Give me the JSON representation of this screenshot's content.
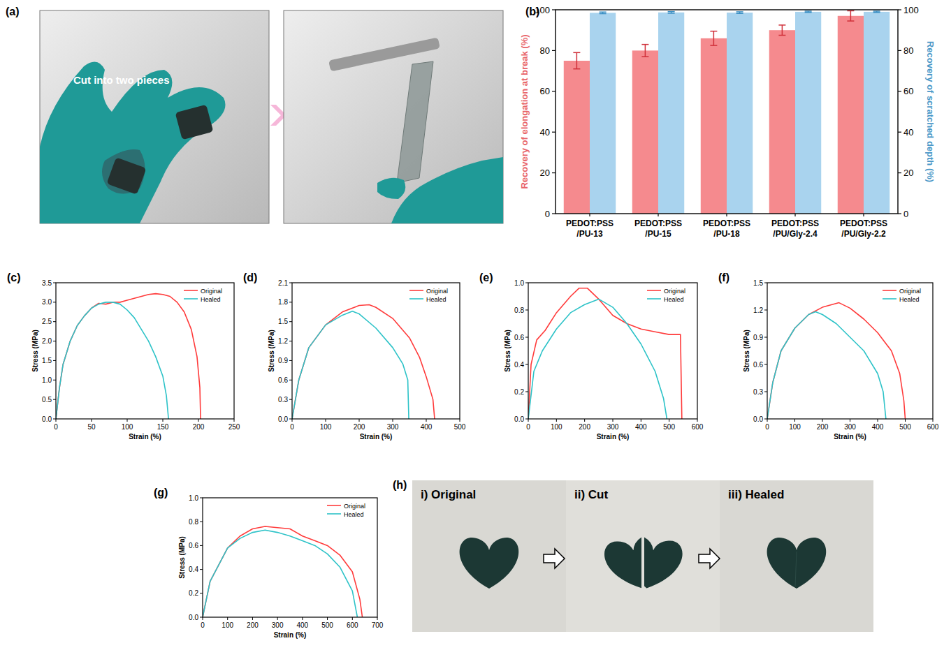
{
  "chart_data": [
    {
      "type": "bar",
      "panel": "(b)",
      "categories": [
        "PEDOT:PSS\n/PU-13",
        "PEDOT:PSS\n/PU-15",
        "PEDOT:PSS\n/PU-18",
        "PEDOT:PSS\n/PU/Gly-2.4",
        "PEDOT:PSS\n/PU/Gly-2.2"
      ],
      "y_label": "Recovery of elongation at break (%)",
      "y2_label": "Recovery of scratched depth (%)",
      "ylim": [
        0,
        100
      ],
      "yticks": [
        0,
        20,
        40,
        60,
        80,
        100
      ],
      "y2lim": [
        0,
        100
      ],
      "y2ticks": [
        0,
        20,
        40,
        60,
        80,
        100
      ],
      "grid": false,
      "series": [
        {
          "color": "#f58a8e",
          "values": [
            75,
            80,
            86,
            90,
            97
          ],
          "errors": [
            4,
            3,
            3.5,
            2.5,
            2.5
          ]
        },
        {
          "color": "#a9d3ee",
          "axis": "y2",
          "values": [
            98.5,
            98.7,
            98.6,
            99,
            99
          ],
          "errors": [
            0.4,
            0.4,
            0.4,
            0.3,
            0.3
          ]
        }
      ]
    },
    {
      "type": "line",
      "panel": "(c)",
      "x_label": "Strain (%)",
      "y_label": "Stress (MPa)",
      "xlim": [
        0,
        250
      ],
      "xticks": [
        0,
        50,
        100,
        150,
        200,
        250
      ],
      "ylim": [
        0,
        3.5
      ],
      "yticks": [
        {
          "value": 0,
          "label": "0.0"
        },
        0.5,
        {
          "value": 1,
          "label": "1.0"
        },
        1.5,
        {
          "value": 2,
          "label": "2.0"
        },
        2.5,
        {
          "value": 3,
          "label": "3.0"
        },
        3.5
      ],
      "legend": "upper right",
      "grid": false,
      "series": [
        {
          "name": "Original",
          "color": "#ff3b3b",
          "x": [
            0,
            5,
            10,
            20,
            30,
            40,
            50,
            60,
            70,
            80,
            90,
            100,
            110,
            120,
            130,
            140,
            150,
            160,
            170,
            180,
            190,
            198,
            202,
            203
          ],
          "values": [
            0,
            0.8,
            1.4,
            2.0,
            2.4,
            2.65,
            2.85,
            2.97,
            2.95,
            3.0,
            3.0,
            3.05,
            3.1,
            3.15,
            3.2,
            3.22,
            3.2,
            3.15,
            3.0,
            2.75,
            2.3,
            1.6,
            0.8,
            0
          ]
        },
        {
          "name": "Healed",
          "color": "#2ec3c8",
          "x": [
            0,
            5,
            10,
            20,
            30,
            40,
            50,
            60,
            70,
            80,
            90,
            100,
            110,
            120,
            130,
            140,
            150,
            155,
            158
          ],
          "values": [
            0,
            0.8,
            1.4,
            2.0,
            2.4,
            2.65,
            2.85,
            2.95,
            3.0,
            3.0,
            2.95,
            2.8,
            2.6,
            2.3,
            2.0,
            1.6,
            1.1,
            0.6,
            0
          ]
        }
      ]
    },
    {
      "type": "line",
      "panel": "(d)",
      "x_label": "Strain (%)",
      "y_label": "Stress (MPa)",
      "xlim": [
        0,
        500
      ],
      "xticks": [
        0,
        100,
        200,
        300,
        400,
        500
      ],
      "ylim": [
        0,
        2.1
      ],
      "yticks": [
        {
          "value": 0,
          "label": "0.0"
        },
        0.3,
        0.6,
        0.9,
        1.2,
        1.5,
        1.8,
        2.1
      ],
      "legend": "upper right",
      "grid": false,
      "series": [
        {
          "name": "Original",
          "color": "#ff3b3b",
          "x": [
            0,
            20,
            50,
            100,
            150,
            200,
            230,
            250,
            300,
            350,
            380,
            400,
            420,
            425
          ],
          "values": [
            0,
            0.6,
            1.1,
            1.45,
            1.65,
            1.75,
            1.76,
            1.72,
            1.55,
            1.25,
            0.95,
            0.65,
            0.3,
            0
          ]
        },
        {
          "name": "Healed",
          "color": "#2ec3c8",
          "x": [
            0,
            20,
            50,
            100,
            150,
            180,
            200,
            250,
            300,
            330,
            345,
            348
          ],
          "values": [
            0,
            0.6,
            1.1,
            1.45,
            1.6,
            1.66,
            1.62,
            1.4,
            1.1,
            0.85,
            0.6,
            0
          ]
        }
      ]
    },
    {
      "type": "line",
      "panel": "(e)",
      "x_label": "Strain (%)",
      "y_label": "Stress (MPa)",
      "xlim": [
        0,
        600
      ],
      "xticks": [
        0,
        100,
        200,
        300,
        400,
        500,
        600
      ],
      "ylim": [
        0,
        1.0
      ],
      "yticks": [
        {
          "value": 0,
          "label": "0.0"
        },
        0.2,
        0.4,
        0.6,
        0.8,
        {
          "value": 1,
          "label": "1.0"
        }
      ],
      "legend": "upper right",
      "grid": false,
      "series": [
        {
          "name": "Original",
          "color": "#ff3b3b",
          "x": [
            0,
            10,
            30,
            60,
            100,
            150,
            180,
            210,
            250,
            300,
            350,
            400,
            450,
            500,
            540,
            545
          ],
          "values": [
            0,
            0.4,
            0.58,
            0.65,
            0.78,
            0.9,
            0.96,
            0.96,
            0.88,
            0.76,
            0.7,
            0.66,
            0.64,
            0.62,
            0.62,
            0
          ]
        },
        {
          "name": "Healed",
          "color": "#2ec3c8",
          "x": [
            0,
            20,
            50,
            100,
            150,
            200,
            250,
            300,
            350,
            400,
            450,
            480,
            492
          ],
          "values": [
            0,
            0.35,
            0.5,
            0.66,
            0.78,
            0.84,
            0.88,
            0.82,
            0.7,
            0.55,
            0.35,
            0.15,
            0
          ]
        }
      ]
    },
    {
      "type": "line",
      "panel": "(f)",
      "x_label": "Strain (%)",
      "y_label": "Stress (MPa)",
      "xlim": [
        0,
        600
      ],
      "xticks": [
        0,
        100,
        200,
        300,
        400,
        500,
        600
      ],
      "ylim": [
        0,
        1.5
      ],
      "yticks": [
        {
          "value": 0,
          "label": "0.0"
        },
        0.3,
        0.6,
        0.9,
        1.2,
        1.5
      ],
      "legend": "upper right",
      "grid": false,
      "series": [
        {
          "name": "Original",
          "color": "#ff3b3b",
          "x": [
            0,
            20,
            50,
            100,
            150,
            200,
            260,
            300,
            350,
            400,
            450,
            480,
            495,
            500
          ],
          "values": [
            0,
            0.4,
            0.75,
            1.0,
            1.15,
            1.23,
            1.28,
            1.22,
            1.1,
            0.95,
            0.75,
            0.5,
            0.2,
            0
          ]
        },
        {
          "name": "Healed",
          "color": "#2ec3c8",
          "x": [
            0,
            20,
            50,
            100,
            150,
            175,
            200,
            250,
            300,
            350,
            400,
            420,
            430
          ],
          "values": [
            0,
            0.4,
            0.75,
            1.0,
            1.15,
            1.18,
            1.15,
            1.05,
            0.9,
            0.75,
            0.5,
            0.3,
            0
          ]
        }
      ]
    },
    {
      "type": "line",
      "panel": "(g)",
      "x_label": "Strain (%)",
      "y_label": "Stress (MPa)",
      "xlim": [
        0,
        700
      ],
      "xticks": [
        0,
        100,
        200,
        300,
        400,
        500,
        600,
        700
      ],
      "ylim": [
        0,
        1.0
      ],
      "yticks": [
        {
          "value": 0,
          "label": "0.0"
        },
        0.2,
        0.4,
        0.6,
        0.8,
        {
          "value": 1,
          "label": "1.0"
        }
      ],
      "legend": "upper right",
      "grid": false,
      "series": [
        {
          "name": "Original",
          "color": "#ff3b3b",
          "x": [
            0,
            30,
            100,
            150,
            200,
            250,
            300,
            350,
            400,
            450,
            500,
            550,
            600,
            630,
            640
          ],
          "values": [
            0,
            0.3,
            0.58,
            0.68,
            0.74,
            0.76,
            0.75,
            0.74,
            0.68,
            0.64,
            0.6,
            0.52,
            0.38,
            0.15,
            0
          ]
        },
        {
          "name": "Healed",
          "color": "#2ec3c8",
          "x": [
            0,
            30,
            100,
            150,
            200,
            250,
            300,
            350,
            400,
            450,
            500,
            550,
            600,
            620
          ],
          "values": [
            0,
            0.3,
            0.58,
            0.66,
            0.71,
            0.73,
            0.71,
            0.68,
            0.64,
            0.6,
            0.53,
            0.42,
            0.22,
            0
          ]
        }
      ]
    }
  ],
  "photos": [
    {
      "panel": "(a)",
      "texts": [
        "Cut into two pieces"
      ]
    },
    {
      "panel": "(h)",
      "texts": [
        "i) Original",
        "ii) Cut",
        "iii) Healed"
      ]
    }
  ]
}
